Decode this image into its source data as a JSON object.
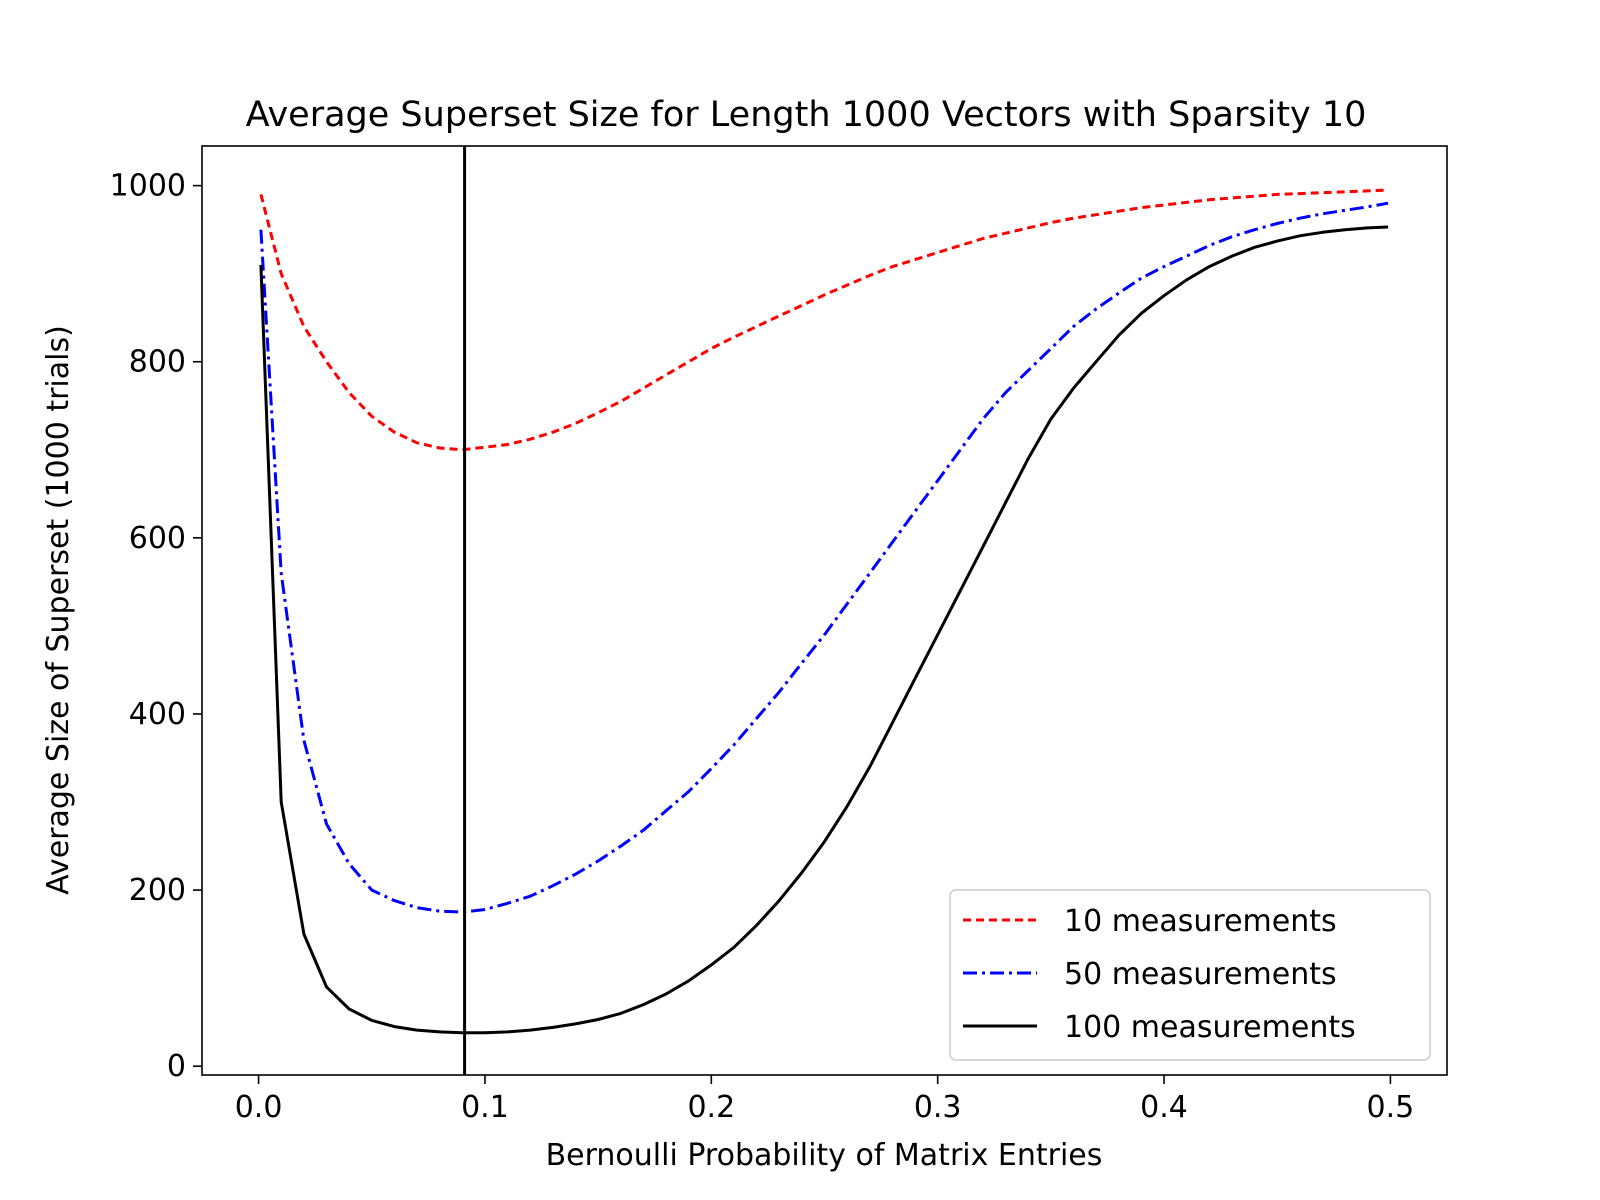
{
  "chart_data": {
    "type": "line",
    "title": "Average Superset Size for Length 1000 Vectors with Sparsity 10",
    "xlabel": "Bernoulli Probability of Matrix Entries",
    "ylabel": "Average Size of Superset (1000 trials)",
    "xlim": [
      -0.025,
      0.525
    ],
    "ylim": [
      -10,
      1045
    ],
    "xticks": [
      0.0,
      0.1,
      0.2,
      0.3,
      0.4,
      0.5
    ],
    "xtick_labels": [
      "0.0",
      "0.1",
      "0.2",
      "0.3",
      "0.4",
      "0.5"
    ],
    "yticks": [
      0,
      200,
      400,
      600,
      800,
      1000
    ],
    "ytick_labels": [
      "0",
      "200",
      "400",
      "600",
      "800",
      "1000"
    ],
    "grid": false,
    "legend_position": "bottom-right",
    "vline": {
      "x": 0.091,
      "color": "#000000"
    },
    "x": [
      0.001,
      0.01,
      0.02,
      0.03,
      0.04,
      0.05,
      0.06,
      0.07,
      0.08,
      0.09,
      0.1,
      0.11,
      0.12,
      0.13,
      0.14,
      0.15,
      0.16,
      0.17,
      0.18,
      0.19,
      0.2,
      0.21,
      0.22,
      0.23,
      0.24,
      0.25,
      0.26,
      0.27,
      0.28,
      0.29,
      0.3,
      0.31,
      0.32,
      0.33,
      0.34,
      0.35,
      0.36,
      0.37,
      0.38,
      0.39,
      0.4,
      0.41,
      0.42,
      0.43,
      0.44,
      0.45,
      0.46,
      0.47,
      0.48,
      0.49,
      0.499
    ],
    "series": [
      {
        "name": "10 measurements",
        "color": "#ff0000",
        "dash": "8,5",
        "values": [
          990,
          900,
          840,
          800,
          765,
          738,
          720,
          708,
          702,
          700,
          703,
          706,
          712,
          720,
          730,
          742,
          755,
          770,
          785,
          800,
          815,
          828,
          840,
          852,
          864,
          876,
          887,
          898,
          908,
          916,
          924,
          932,
          940,
          946,
          952,
          958,
          963,
          967,
          971,
          975,
          978,
          981,
          984,
          986,
          988,
          990,
          991,
          992,
          993,
          994,
          995
        ]
      },
      {
        "name": "50 measurements",
        "color": "#0000ff",
        "dash": "14,5,3,5",
        "values": [
          950,
          560,
          370,
          275,
          230,
          200,
          188,
          180,
          176,
          175,
          178,
          185,
          193,
          205,
          218,
          233,
          250,
          268,
          290,
          312,
          338,
          365,
          395,
          425,
          458,
          490,
          525,
          560,
          595,
          630,
          665,
          700,
          735,
          765,
          790,
          815,
          840,
          860,
          878,
          895,
          908,
          920,
          932,
          942,
          950,
          957,
          963,
          968,
          972,
          976,
          980
        ]
      },
      {
        "name": "100 measurements",
        "color": "#000000",
        "dash": "",
        "values": [
          910,
          300,
          150,
          90,
          65,
          52,
          45,
          41,
          39,
          38,
          38,
          39,
          41,
          44,
          48,
          53,
          60,
          70,
          82,
          97,
          115,
          135,
          160,
          188,
          220,
          255,
          295,
          340,
          390,
          440,
          490,
          540,
          590,
          640,
          690,
          735,
          770,
          800,
          830,
          855,
          875,
          893,
          908,
          920,
          930,
          937,
          943,
          947,
          950,
          952,
          953
        ]
      }
    ]
  }
}
